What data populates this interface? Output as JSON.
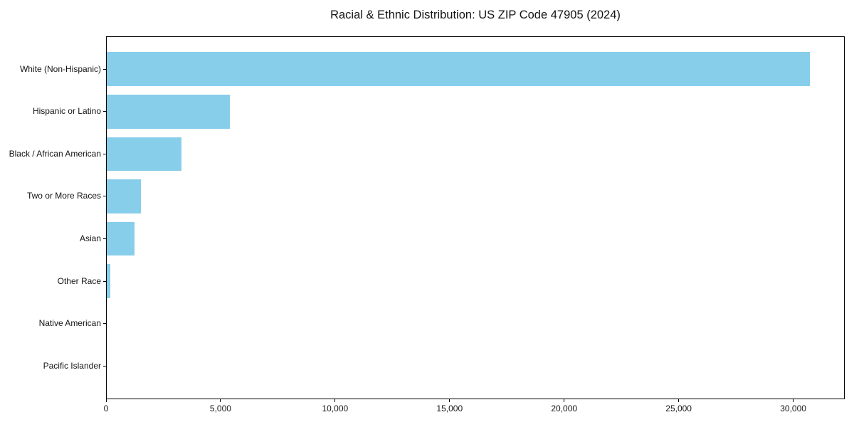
{
  "chart_data": {
    "type": "bar",
    "orientation": "horizontal",
    "title": "Racial & Ethnic Distribution: US ZIP Code 47905 (2024)",
    "categories": [
      "White (Non-Hispanic)",
      "Hispanic or Latino",
      "Black / African American",
      "Two or More Races",
      "Asian",
      "Other Race",
      "Native American",
      "Pacific Islander"
    ],
    "values": [
      30700,
      5370,
      3260,
      1500,
      1220,
      150,
      20,
      8
    ],
    "xlabel": "",
    "ylabel": "",
    "xlim": [
      0,
      32250
    ],
    "x_ticks": [
      0,
      5000,
      10000,
      15000,
      20000,
      25000,
      30000
    ],
    "x_tick_labels": [
      "0",
      "5,000",
      "10,000",
      "15,000",
      "20,000",
      "25,000",
      "30,000"
    ],
    "bar_color": "#87ceeb",
    "axis_color": "#000000",
    "text_color": "#141414",
    "background_color": "#ffffff",
    "grid": false,
    "legend": "none"
  }
}
